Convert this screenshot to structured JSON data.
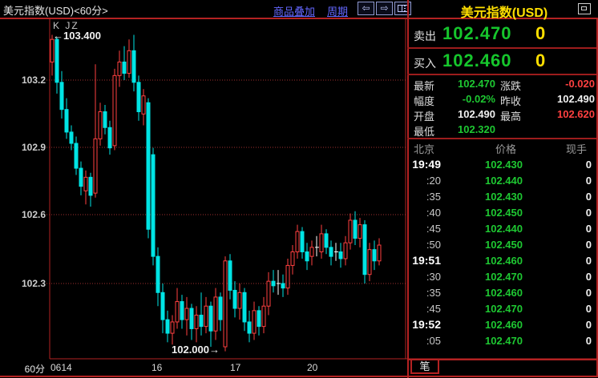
{
  "titlebar": {
    "title": "美元指数(USD)<60分>",
    "overlay_link": "商品叠加",
    "period_link": "周期",
    "prev_icon": "⇦",
    "next_icon": "⇨"
  },
  "chart": {
    "indicator_label": "K JZ",
    "high_annotation": "←103.400",
    "low_annotation": "102.000→",
    "period_label": "60分"
  },
  "chart_data": {
    "type": "candlestick",
    "title": "美元指数(USD) 60分",
    "y_ticks": [
      "103.2",
      "102.9",
      "102.6",
      "102.3"
    ],
    "x_labels": [
      "0614",
      "16",
      "17",
      "20"
    ],
    "ylim": [
      101.97,
      103.47
    ],
    "annotations": {
      "high": "103.400",
      "low": "102.000"
    },
    "grid": "dotted-horizontal",
    "candle_format": [
      "open",
      "high",
      "low",
      "close",
      "type(u=up-red-hollow,d=down-cyan,w=doji-white)"
    ],
    "candles": [
      [
        103.28,
        103.4,
        103.22,
        103.38,
        "u"
      ],
      [
        103.38,
        103.39,
        103.14,
        103.19,
        "d"
      ],
      [
        103.19,
        103.24,
        103.03,
        103.07,
        "d"
      ],
      [
        103.07,
        103.12,
        102.94,
        102.97,
        "d"
      ],
      [
        102.97,
        103.0,
        102.89,
        102.92,
        "d"
      ],
      [
        102.92,
        102.95,
        102.78,
        102.81,
        "d"
      ],
      [
        102.81,
        102.84,
        102.69,
        102.73,
        "d"
      ],
      [
        102.71,
        102.8,
        102.65,
        102.77,
        "u"
      ],
      [
        102.77,
        102.79,
        102.64,
        102.69,
        "d"
      ],
      [
        102.7,
        103.27,
        102.68,
        102.94,
        "u"
      ],
      [
        102.94,
        103.1,
        102.91,
        103.06,
        "u"
      ],
      [
        103.06,
        103.09,
        102.96,
        102.99,
        "d"
      ],
      [
        102.99,
        103.02,
        102.87,
        102.9,
        "d"
      ],
      [
        102.91,
        103.25,
        102.89,
        103.22,
        "u"
      ],
      [
        103.22,
        103.33,
        103.17,
        103.28,
        "u"
      ],
      [
        103.28,
        103.35,
        103.2,
        103.23,
        "d"
      ],
      [
        103.23,
        103.38,
        103.21,
        103.33,
        "u"
      ],
      [
        103.33,
        103.4,
        103.15,
        103.19,
        "d"
      ],
      [
        103.19,
        103.22,
        103.02,
        103.06,
        "d"
      ],
      [
        103.05,
        103.16,
        103.0,
        103.13,
        "u"
      ],
      [
        103.1,
        103.12,
        102.5,
        102.54,
        "d"
      ],
      [
        102.87,
        102.9,
        102.38,
        102.42,
        "d"
      ],
      [
        102.42,
        102.46,
        102.2,
        102.26,
        "d"
      ],
      [
        102.26,
        102.3,
        102.08,
        102.14,
        "d"
      ],
      [
        102.14,
        102.18,
        102.04,
        102.08,
        "d"
      ],
      [
        102.08,
        102.16,
        102.03,
        102.13,
        "u"
      ],
      [
        102.13,
        102.28,
        102.1,
        102.22,
        "u"
      ],
      [
        102.22,
        102.25,
        102.1,
        102.14,
        "d"
      ],
      [
        102.14,
        102.24,
        102.07,
        102.19,
        "u"
      ],
      [
        102.19,
        102.21,
        102.05,
        102.1,
        "d"
      ],
      [
        102.1,
        102.2,
        102.04,
        102.16,
        "u"
      ],
      [
        102.16,
        102.26,
        102.07,
        102.11,
        "d"
      ],
      [
        102.11,
        102.24,
        102.08,
        102.2,
        "u"
      ],
      [
        102.2,
        102.22,
        102.02,
        102.09,
        "d"
      ],
      [
        102.09,
        102.28,
        102.05,
        102.24,
        "u"
      ],
      [
        102.24,
        102.26,
        102.09,
        102.14,
        "d"
      ],
      [
        102.02,
        102.42,
        102.0,
        102.4,
        "u"
      ],
      [
        102.4,
        102.43,
        102.23,
        102.27,
        "d"
      ],
      [
        102.27,
        102.31,
        102.15,
        102.19,
        "d"
      ],
      [
        102.19,
        102.3,
        102.14,
        102.26,
        "u"
      ],
      [
        102.26,
        102.28,
        102.09,
        102.13,
        "d"
      ],
      [
        102.13,
        102.18,
        102.04,
        102.08,
        "d"
      ],
      [
        102.08,
        102.22,
        102.05,
        102.18,
        "u"
      ],
      [
        102.18,
        102.2,
        102.07,
        102.11,
        "d"
      ],
      [
        102.11,
        102.24,
        102.08,
        102.2,
        "u"
      ],
      [
        102.2,
        102.35,
        102.16,
        102.31,
        "u"
      ],
      [
        102.31,
        102.36,
        102.26,
        102.29,
        "d"
      ],
      [
        102.3,
        102.36,
        102.25,
        102.3,
        "w"
      ],
      [
        102.3,
        102.34,
        102.24,
        102.28,
        "d"
      ],
      [
        102.28,
        102.41,
        102.25,
        102.38,
        "u"
      ],
      [
        102.38,
        102.47,
        102.34,
        102.44,
        "u"
      ],
      [
        102.44,
        102.56,
        102.41,
        102.53,
        "u"
      ],
      [
        102.53,
        102.55,
        102.41,
        102.44,
        "d"
      ],
      [
        102.44,
        102.48,
        102.36,
        102.4,
        "d"
      ],
      [
        102.42,
        102.49,
        102.38,
        102.46,
        "u"
      ],
      [
        102.46,
        102.51,
        102.42,
        102.46,
        "w"
      ],
      [
        102.44,
        102.56,
        102.41,
        102.52,
        "u"
      ],
      [
        102.52,
        102.54,
        102.43,
        102.46,
        "d"
      ],
      [
        102.46,
        102.49,
        102.38,
        102.42,
        "d"
      ],
      [
        102.44,
        102.48,
        102.4,
        102.44,
        "w"
      ],
      [
        102.44,
        102.48,
        102.37,
        102.41,
        "d"
      ],
      [
        102.41,
        102.51,
        102.38,
        102.48,
        "u"
      ],
      [
        102.48,
        102.61,
        102.45,
        102.58,
        "u"
      ],
      [
        102.58,
        102.62,
        102.47,
        102.5,
        "d"
      ],
      [
        102.5,
        102.59,
        102.46,
        102.56,
        "u"
      ],
      [
        102.56,
        102.58,
        102.3,
        102.34,
        "d"
      ],
      [
        102.34,
        102.48,
        102.31,
        102.45,
        "u"
      ],
      [
        102.45,
        102.49,
        102.36,
        102.4,
        "d"
      ],
      [
        102.4,
        102.5,
        102.38,
        102.47,
        "u"
      ]
    ]
  },
  "panel": {
    "title": "美元指数(USD)",
    "sell_label": "卖出",
    "sell_price": "102.470",
    "sell_vol": "0",
    "buy_label": "买入",
    "buy_price": "102.460",
    "buy_vol": "0",
    "stats": [
      {
        "l1": "最新",
        "v1": "102.470",
        "c1": "g",
        "l2": "涨跌",
        "v2": "-0.020",
        "c2": "r"
      },
      {
        "l1": "幅度",
        "v1": "-0.02%",
        "c1": "g",
        "l2": "昨收",
        "v2": "102.490",
        "c2": "w"
      },
      {
        "l1": "开盘",
        "v1": "102.490",
        "c1": "w",
        "l2": "最高",
        "v2": "102.620",
        "c2": "r"
      },
      {
        "l1": "最低",
        "v1": "102.320",
        "c1": "g",
        "l2": "",
        "v2": "",
        "c2": "w"
      }
    ],
    "table": {
      "headers": [
        "北京",
        "价格",
        "现手"
      ],
      "rows": [
        {
          "time": "19:49",
          "price": "102.430",
          "vol": "0",
          "hour": true
        },
        {
          "time": ":20",
          "price": "102.440",
          "vol": "0",
          "hour": false
        },
        {
          "time": ":35",
          "price": "102.430",
          "vol": "0",
          "hour": false
        },
        {
          "time": ":40",
          "price": "102.450",
          "vol": "0",
          "hour": false
        },
        {
          "time": ":45",
          "price": "102.440",
          "vol": "0",
          "hour": false
        },
        {
          "time": ":50",
          "price": "102.450",
          "vol": "0",
          "hour": false
        },
        {
          "time": "19:51",
          "price": "102.460",
          "vol": "0",
          "hour": true
        },
        {
          "time": ":30",
          "price": "102.470",
          "vol": "0",
          "hour": false
        },
        {
          "time": ":35",
          "price": "102.460",
          "vol": "0",
          "hour": false
        },
        {
          "time": ":45",
          "price": "102.470",
          "vol": "0",
          "hour": false
        },
        {
          "time": "19:52",
          "price": "102.460",
          "vol": "0",
          "hour": true
        },
        {
          "time": ":05",
          "price": "102.470",
          "vol": "0",
          "hour": false
        }
      ]
    },
    "tab_label": "笔"
  },
  "colors": {
    "up_candle": "#ff4040",
    "down_candle": "#00e4e4",
    "doji": "#ffffff",
    "grid_red": "#a03030",
    "frame_red": "#b42222",
    "value_green": "#1ec832",
    "value_red": "#ff4040",
    "quote_yellow": "#ffdf00",
    "link_blue": "#6467ff"
  }
}
